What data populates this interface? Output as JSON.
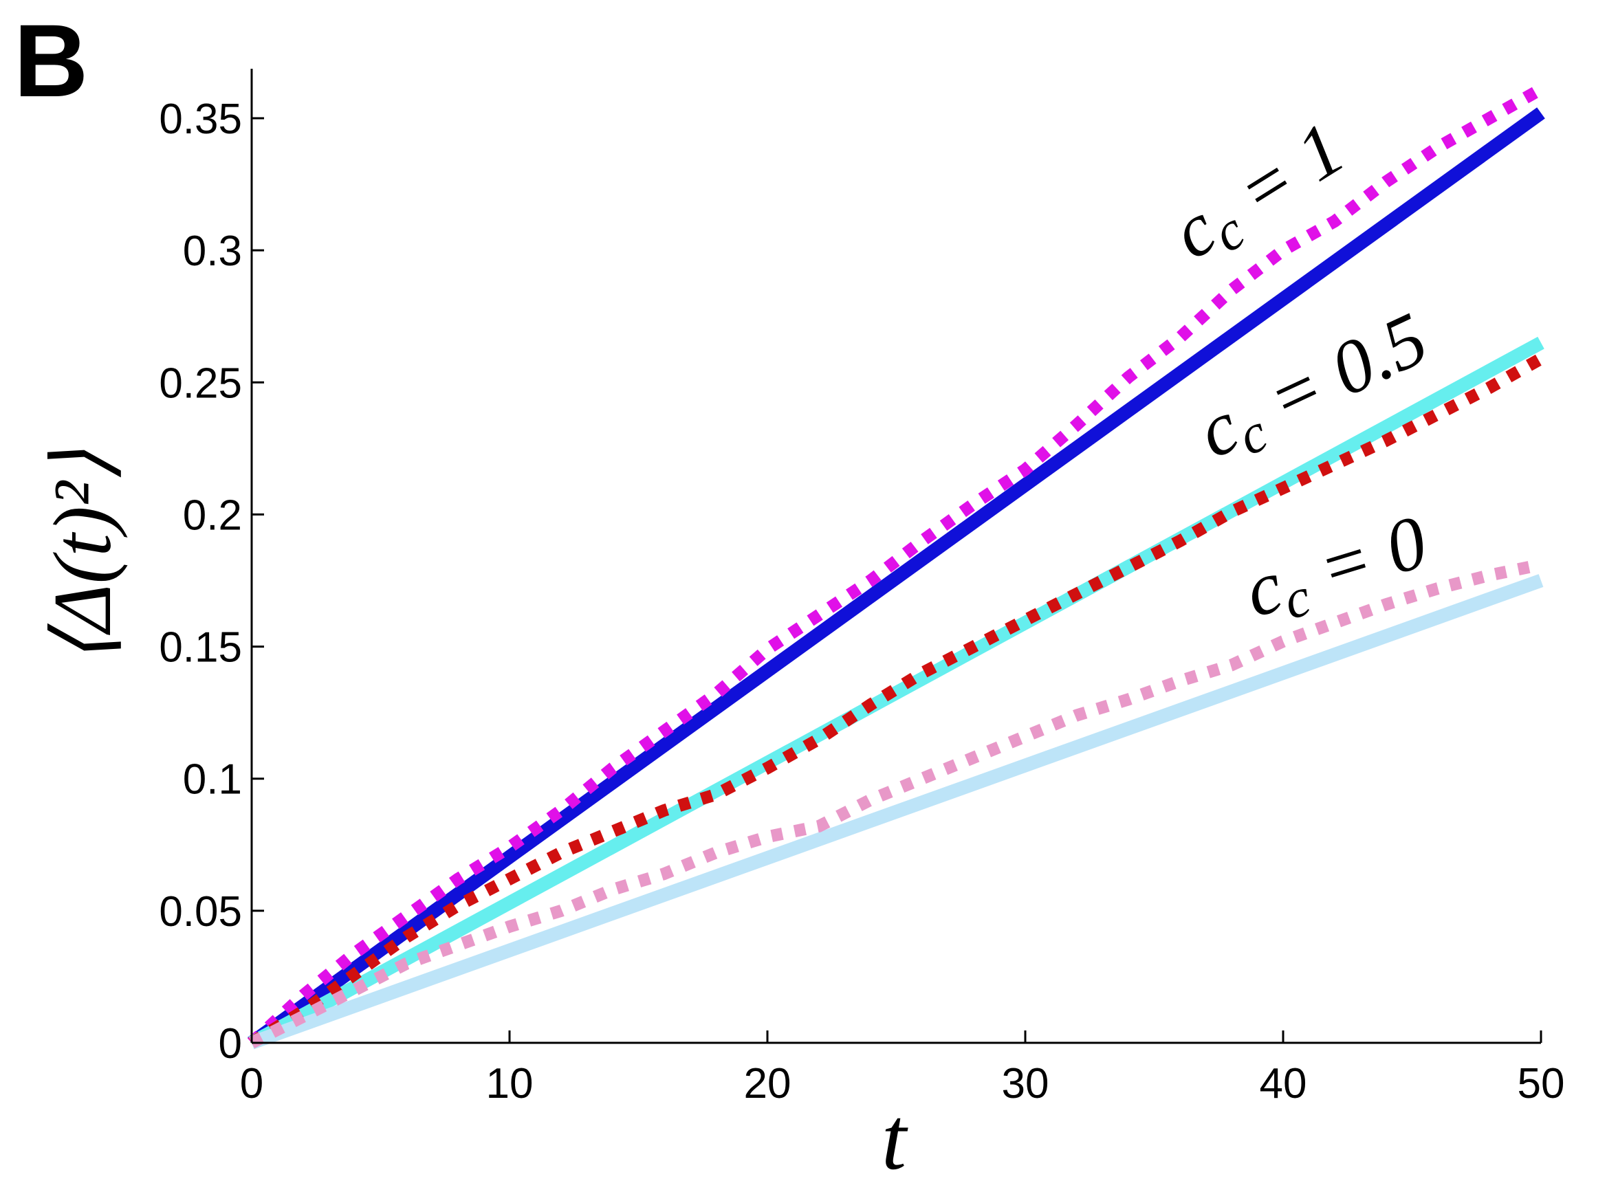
{
  "panel_label": "B",
  "chart_data": {
    "type": "line",
    "xlabel": "t",
    "ylabel": "⟨Δ(t)²⟩",
    "xlim": [
      0,
      50
    ],
    "ylim": [
      0,
      0.37
    ],
    "xticks": [
      0,
      10,
      20,
      30,
      40,
      50
    ],
    "yticks": [
      0,
      0.05,
      0.1,
      0.15,
      0.2,
      0.25,
      0.3,
      0.35
    ],
    "xtick_labels": [
      "0",
      "10",
      "20",
      "30",
      "40",
      "50"
    ],
    "ytick_labels": [
      "0",
      "0.05",
      "0.1",
      "0.15",
      "0.2",
      "0.25",
      "0.3",
      "0.35"
    ],
    "grid": false,
    "series": [
      {
        "style": "solid",
        "color": "#1010d8",
        "x": [
          0,
          50
        ],
        "y": [
          0,
          0.352
        ]
      },
      {
        "style": "dotted",
        "color": "#e010e8",
        "x": [
          0,
          2,
          4,
          6,
          8,
          10,
          12,
          14,
          16,
          18,
          20,
          22,
          24,
          26,
          28,
          30,
          32,
          34,
          36,
          38,
          40,
          42,
          44,
          46,
          48,
          50
        ],
        "y": [
          0,
          0.018,
          0.034,
          0.048,
          0.062,
          0.074,
          0.088,
          0.104,
          0.118,
          0.132,
          0.149,
          0.162,
          0.175,
          0.19,
          0.204,
          0.217,
          0.234,
          0.252,
          0.267,
          0.285,
          0.3,
          0.311,
          0.326,
          0.339,
          0.35,
          0.361
        ]
      },
      {
        "style": "solid",
        "color": "#66eeee",
        "x": [
          0,
          50
        ],
        "y": [
          0,
          0.265
        ]
      },
      {
        "style": "dotted",
        "color": "#d01010",
        "x": [
          0,
          2,
          4,
          6,
          8,
          10,
          12,
          14,
          16,
          18,
          20,
          22,
          24,
          26,
          28,
          30,
          32,
          34,
          36,
          38,
          40,
          42,
          44,
          46,
          48,
          50
        ],
        "y": [
          0,
          0.012,
          0.026,
          0.04,
          0.052,
          0.062,
          0.072,
          0.08,
          0.088,
          0.094,
          0.104,
          0.115,
          0.128,
          0.14,
          0.15,
          0.16,
          0.17,
          0.18,
          0.19,
          0.201,
          0.21,
          0.219,
          0.228,
          0.238,
          0.248,
          0.259
        ]
      },
      {
        "style": "solid",
        "color": "#bde4f8",
        "x": [
          0,
          50
        ],
        "y": [
          0,
          0.175
        ]
      },
      {
        "style": "dotted",
        "color": "#e898c8",
        "x": [
          0,
          2,
          4,
          6,
          8,
          10,
          12,
          14,
          16,
          18,
          20,
          22,
          24,
          26,
          28,
          30,
          32,
          34,
          36,
          38,
          40,
          42,
          44,
          46,
          48,
          50
        ],
        "y": [
          0,
          0.01,
          0.02,
          0.03,
          0.037,
          0.044,
          0.05,
          0.058,
          0.064,
          0.072,
          0.078,
          0.082,
          0.092,
          0.1,
          0.108,
          0.116,
          0.124,
          0.13,
          0.137,
          0.143,
          0.152,
          0.159,
          0.166,
          0.172,
          0.177,
          0.181
        ]
      }
    ],
    "annotations": [
      {
        "text": "c",
        "sub": "c",
        "rest": " = 1",
        "x": 36.5,
        "y": 0.296
      },
      {
        "text": "c",
        "sub": "c",
        "rest": " = 0.5",
        "x": 37.3,
        "y": 0.221
      },
      {
        "text": "c",
        "sub": "c",
        "rest": " = 0",
        "x": 38.9,
        "y": 0.161
      }
    ]
  }
}
